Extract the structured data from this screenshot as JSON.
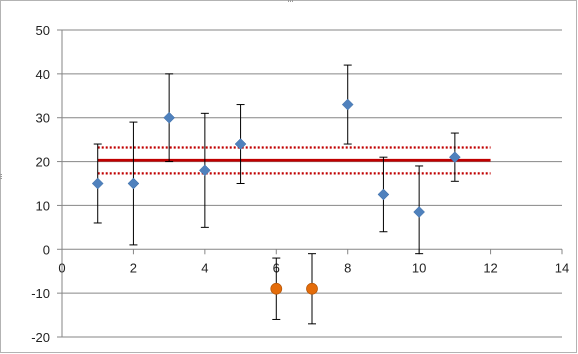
{
  "chart_data": {
    "type": "scatter",
    "title": "",
    "xlabel": "",
    "ylabel": "",
    "xlim": [
      0,
      14
    ],
    "ylim": [
      -20,
      50
    ],
    "x_ticks": [
      0,
      2,
      4,
      6,
      8,
      10,
      12,
      14
    ],
    "y_ticks": [
      -20,
      -10,
      0,
      10,
      20,
      30,
      40,
      50
    ],
    "grid": "horizontal",
    "legend": "none",
    "series": [
      {
        "marker": "diamond",
        "color": "#4f81bd",
        "points": [
          {
            "x": 1,
            "y": 15,
            "err_low": 6,
            "err_high": 24
          },
          {
            "x": 2,
            "y": 15,
            "err_low": 1,
            "err_high": 29
          },
          {
            "x": 3,
            "y": 30,
            "err_low": 20,
            "err_high": 40
          },
          {
            "x": 4,
            "y": 18,
            "err_low": 5,
            "err_high": 31
          },
          {
            "x": 5,
            "y": 24,
            "err_low": 15,
            "err_high": 33
          },
          {
            "x": 8,
            "y": 33,
            "err_low": 24,
            "err_high": 42
          },
          {
            "x": 9,
            "y": 12.5,
            "err_low": 4,
            "err_high": 21
          },
          {
            "x": 10,
            "y": 8.5,
            "err_low": -1,
            "err_high": 19
          },
          {
            "x": 11,
            "y": 21,
            "err_low": 15.5,
            "err_high": 26.5
          }
        ]
      },
      {
        "marker": "circle",
        "color": "#e46c0a",
        "points": [
          {
            "x": 6,
            "y": -9,
            "err_low": -16,
            "err_high": -2
          },
          {
            "x": 7,
            "y": -9,
            "err_low": -17,
            "err_high": -1
          }
        ]
      }
    ],
    "reference_lines": [
      {
        "style": "solid",
        "color": "#c00000",
        "y": 20.3,
        "x_from": 1,
        "x_to": 12
      },
      {
        "style": "dotted",
        "color": "#c00000",
        "y": 23.2,
        "x_from": 1,
        "x_to": 12
      },
      {
        "style": "dotted",
        "color": "#c00000",
        "y": 17.3,
        "x_from": 1,
        "x_to": 12
      }
    ]
  }
}
